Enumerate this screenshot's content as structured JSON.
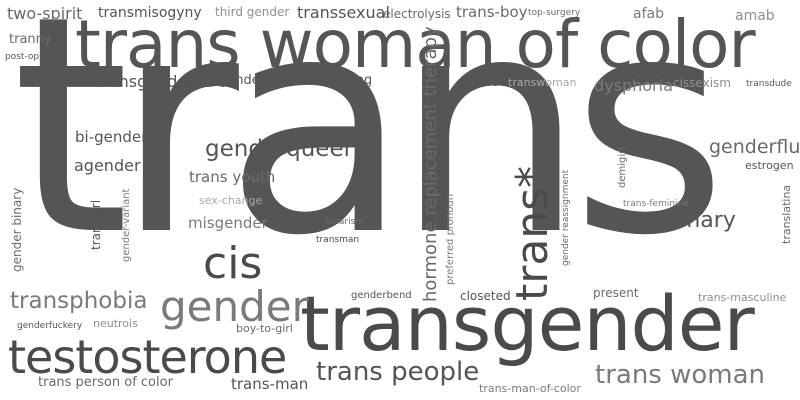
{
  "words": {
    "trans": "trans",
    "trans_woman_of_color": "trans woman of color",
    "transgender": "transgender",
    "testosterone": "testosterone",
    "cis": "cis",
    "gender": "gender",
    "trans_people": "trans people",
    "trans_woman": "trans woman",
    "transphobia": "transphobia",
    "genderqueer": "genderqueer",
    "non_binary": "non-binary",
    "genderfluid": "genderfluid",
    "trans_star": "trans*",
    "hormone_replacement_therapy": "hormone replacement therapy",
    "two_spirit": "two-spirit",
    "transmisogyny": "transmisogyny",
    "third_gender": "third gender",
    "transsexual": "transsexual",
    "electrolysis": "electrolysis",
    "trans_boy": "trans-boy",
    "top_surgery": "top-surgery",
    "afab": "afab",
    "amab": "amab",
    "tranny": "tranny",
    "post_op": "post-op",
    "transgendered": "transgendered",
    "gender_non_conforming": "gender non-conforming",
    "cishet": "cishet",
    "transwoman": "transwoman",
    "dysphoria": "dysphoria",
    "cissexism": "cissexism",
    "transdude": "transdude",
    "bi_gender": "bi-gender",
    "agender": "agender",
    "trans_youth": "trans youth",
    "estrogen": "estrogen",
    "sex_change": "sex-change",
    "misgender": "misgender",
    "binarism": "binarism",
    "transman": "transman",
    "trans_feminine": "trans-feminine",
    "genderbend": "genderbend",
    "closeted": "closeted",
    "present": "present",
    "trans_masculine": "trans-masculine",
    "genderfuckery": "genderfuckery",
    "neutrois": "neutrois",
    "boy_to_girl": "boy-to-girl",
    "trans_person_of_color": "trans person of color",
    "trans_man": "trans-man",
    "trans_man_of_color": "trans-man-of-color",
    "gender_binary": "gender binary",
    "transgirl": "transgirl",
    "gender_variant": "gender-variant",
    "preferred_pronoun": "preferred pronoun",
    "gender_reassignment": "gender reassignment",
    "demigirl": "demigirl",
    "translatina": "translatina"
  },
  "colors": {
    "background": "#ffffff",
    "shade_darkest": "#4a4a4a",
    "shade_light": "#a8a8a8"
  }
}
